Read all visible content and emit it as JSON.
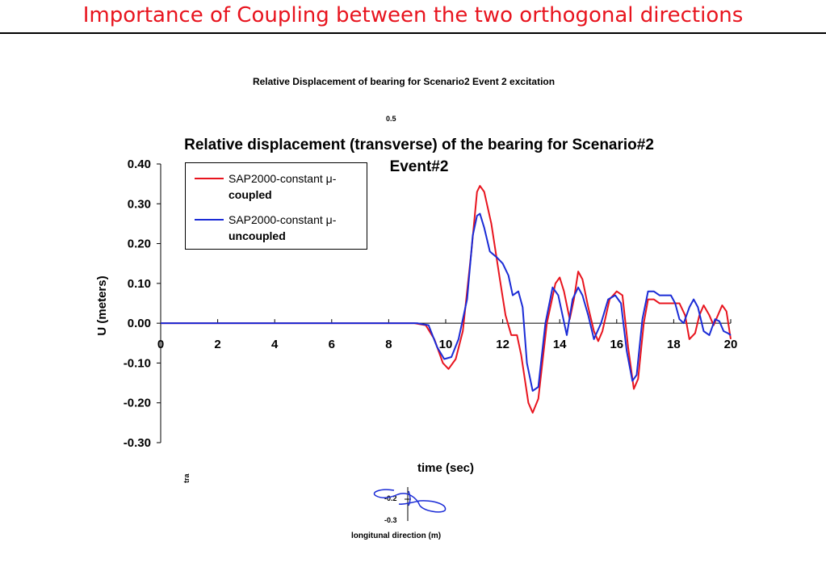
{
  "slide": {
    "title": "Importance of Coupling between the two orthogonal directions",
    "title_color": "#e8141e"
  },
  "underlying_chart": {
    "title": "Relative Displacement of bearing for Scenario2 Event 2 excitation",
    "top_tick": "0.5",
    "side_label": "tra",
    "ytick_1": "-0.2",
    "ytick_2": "-0.3",
    "xlabel": "longitunal direction (m)"
  },
  "chart_data": {
    "type": "line",
    "title": "Relative displacement (transverse) of the bearing for Scenario#2 Event#2",
    "xlabel": "time (sec)",
    "ylabel": "U (meters)",
    "xlim": [
      0,
      20
    ],
    "ylim": [
      -0.3,
      0.4
    ],
    "x_ticks": [
      "0",
      "2",
      "4",
      "6",
      "8",
      "10",
      "12",
      "14",
      "16",
      "18",
      "20"
    ],
    "y_ticks": [
      "0.40",
      "0.30",
      "0.20",
      "0.10",
      "0.00",
      "-0.10",
      "-0.20",
      "-0.30"
    ],
    "grid": false,
    "legend_position": "top-left",
    "series": [
      {
        "name_line1": "SAP2000-constant μ-",
        "name_line2": "coupled",
        "color": "#e8141e",
        "points": [
          [
            0,
            0
          ],
          [
            8.9,
            0
          ],
          [
            9.3,
            -0.005
          ],
          [
            9.6,
            -0.04
          ],
          [
            9.9,
            -0.1
          ],
          [
            10.1,
            -0.115
          ],
          [
            10.35,
            -0.09
          ],
          [
            10.6,
            -0.02
          ],
          [
            10.9,
            0.18
          ],
          [
            11.1,
            0.33
          ],
          [
            11.2,
            0.345
          ],
          [
            11.35,
            0.33
          ],
          [
            11.6,
            0.25
          ],
          [
            11.9,
            0.11
          ],
          [
            12.1,
            0.02
          ],
          [
            12.3,
            -0.03
          ],
          [
            12.5,
            -0.03
          ],
          [
            12.65,
            -0.08
          ],
          [
            12.9,
            -0.2
          ],
          [
            13.05,
            -0.225
          ],
          [
            13.25,
            -0.19
          ],
          [
            13.55,
            0.0
          ],
          [
            13.85,
            0.1
          ],
          [
            14.0,
            0.115
          ],
          [
            14.15,
            0.08
          ],
          [
            14.35,
            0.01
          ],
          [
            14.5,
            0.06
          ],
          [
            14.65,
            0.13
          ],
          [
            14.8,
            0.11
          ],
          [
            15.0,
            0.04
          ],
          [
            15.2,
            -0.02
          ],
          [
            15.35,
            -0.045
          ],
          [
            15.5,
            -0.02
          ],
          [
            15.75,
            0.06
          ],
          [
            16.0,
            0.08
          ],
          [
            16.2,
            0.07
          ],
          [
            16.4,
            -0.06
          ],
          [
            16.6,
            -0.165
          ],
          [
            16.75,
            -0.14
          ],
          [
            16.95,
            0.0
          ],
          [
            17.1,
            0.06
          ],
          [
            17.3,
            0.06
          ],
          [
            17.5,
            0.05
          ],
          [
            17.8,
            0.05
          ],
          [
            18.2,
            0.05
          ],
          [
            18.4,
            0.02
          ],
          [
            18.55,
            -0.04
          ],
          [
            18.75,
            -0.025
          ],
          [
            18.9,
            0.02
          ],
          [
            19.05,
            0.045
          ],
          [
            19.25,
            0.02
          ],
          [
            19.4,
            -0.005
          ],
          [
            19.55,
            0.02
          ],
          [
            19.7,
            0.045
          ],
          [
            19.85,
            0.03
          ],
          [
            20.0,
            -0.04
          ]
        ]
      },
      {
        "name_line1": "SAP2000-constant μ-",
        "name_line2": "uncoupled",
        "color": "#1a2bd6",
        "points": [
          [
            0,
            0
          ],
          [
            9.0,
            0
          ],
          [
            9.4,
            -0.005
          ],
          [
            9.7,
            -0.06
          ],
          [
            9.95,
            -0.09
          ],
          [
            10.2,
            -0.085
          ],
          [
            10.45,
            -0.04
          ],
          [
            10.75,
            0.06
          ],
          [
            10.95,
            0.22
          ],
          [
            11.1,
            0.27
          ],
          [
            11.2,
            0.275
          ],
          [
            11.35,
            0.24
          ],
          [
            11.55,
            0.18
          ],
          [
            11.8,
            0.165
          ],
          [
            12.0,
            0.15
          ],
          [
            12.2,
            0.12
          ],
          [
            12.35,
            0.07
          ],
          [
            12.55,
            0.08
          ],
          [
            12.7,
            0.04
          ],
          [
            12.85,
            -0.1
          ],
          [
            13.05,
            -0.17
          ],
          [
            13.25,
            -0.16
          ],
          [
            13.5,
            0.0
          ],
          [
            13.75,
            0.09
          ],
          [
            13.95,
            0.07
          ],
          [
            14.1,
            0.02
          ],
          [
            14.25,
            -0.03
          ],
          [
            14.45,
            0.06
          ],
          [
            14.65,
            0.09
          ],
          [
            14.8,
            0.07
          ],
          [
            15.0,
            0.02
          ],
          [
            15.2,
            -0.04
          ],
          [
            15.45,
            0.0
          ],
          [
            15.7,
            0.06
          ],
          [
            15.95,
            0.07
          ],
          [
            16.15,
            0.05
          ],
          [
            16.35,
            -0.07
          ],
          [
            16.55,
            -0.145
          ],
          [
            16.7,
            -0.13
          ],
          [
            16.9,
            0.01
          ],
          [
            17.1,
            0.08
          ],
          [
            17.3,
            0.08
          ],
          [
            17.5,
            0.07
          ],
          [
            17.9,
            0.07
          ],
          [
            18.05,
            0.05
          ],
          [
            18.2,
            0.01
          ],
          [
            18.35,
            0.0
          ],
          [
            18.55,
            0.04
          ],
          [
            18.7,
            0.06
          ],
          [
            18.85,
            0.04
          ],
          [
            19.05,
            -0.02
          ],
          [
            19.25,
            -0.03
          ],
          [
            19.45,
            0.01
          ],
          [
            19.6,
            0.005
          ],
          [
            19.75,
            -0.02
          ],
          [
            19.9,
            -0.025
          ],
          [
            20.0,
            -0.03
          ]
        ]
      }
    ]
  }
}
